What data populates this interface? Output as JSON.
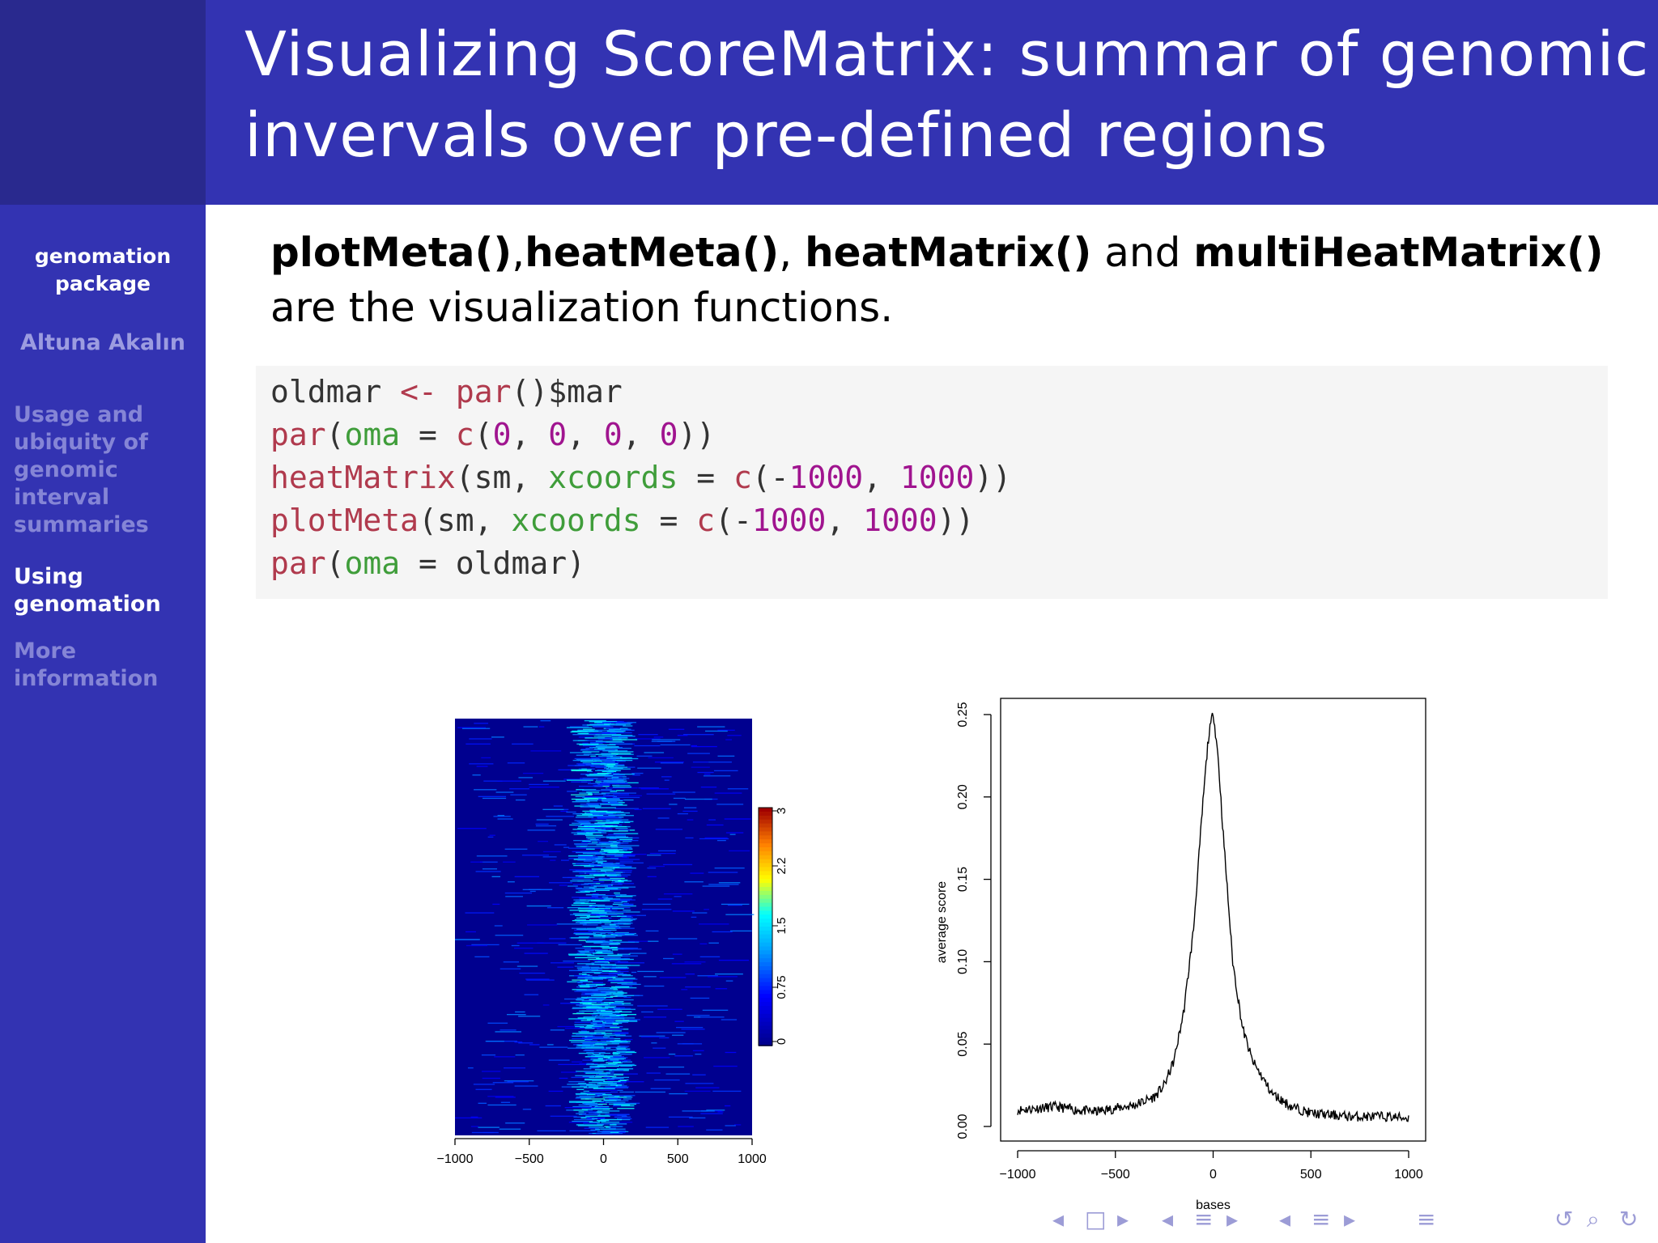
{
  "slide": {
    "title_line1": "Visualizing ScoreMatrix: summar of genomic",
    "title_line2": "invervals over pre-defined regions"
  },
  "sidebar": {
    "package_line1": "genomation",
    "package_line2": "package",
    "author": "Altuna Akalın",
    "sections": [
      {
        "lines": [
          "Usage and",
          "ubiquity of",
          "genomic",
          "interval",
          "summaries"
        ],
        "active": false
      },
      {
        "lines": [
          "Using",
          "genomation"
        ],
        "active": true
      },
      {
        "lines": [
          "More",
          "information"
        ],
        "active": false
      }
    ]
  },
  "lead": {
    "f1": "plotMeta()",
    "sep1": ",",
    "f2": "heatMeta()",
    "sep2": ", ",
    "f3": "heatMatrix()",
    "and": " and ",
    "f4": "multiHeatMatrix()",
    "line2": "are the visualization functions."
  },
  "code": {
    "l1": {
      "a": "oldmar ",
      "b": "<-",
      "c": " ",
      "d": "par",
      "e": "()$mar"
    },
    "l2": {
      "a": "par",
      "b": "(",
      "c": "oma",
      "d": " = ",
      "e": "c",
      "f": "(",
      "g": "0",
      "h": ", ",
      "i": "0",
      "j": ", ",
      "k": "0",
      "l": ", ",
      "m": "0",
      "n": "))"
    },
    "l3": {
      "a": "heatMatrix",
      "b": "(sm, ",
      "c": "xcoords",
      "d": " = ",
      "e": "c",
      "f": "(-",
      "g": "1000",
      "h": ", ",
      "i": "1000",
      "j": "))"
    },
    "l4": {
      "a": "plotMeta",
      "b": "(sm, ",
      "c": "xcoords",
      "d": " = ",
      "e": "c",
      "f": "(-",
      "g": "1000",
      "h": ", ",
      "i": "1000",
      "j": "))"
    },
    "l5": {
      "a": "par",
      "b": "(",
      "c": "oma",
      "d": " = oldmar)"
    }
  },
  "chart_data": [
    {
      "type": "heatmap",
      "x_ticks": [
        "−1000",
        "−500",
        "0",
        "500",
        "1000"
      ],
      "xlim": [
        -1000,
        1000
      ],
      "colorbar_ticks": [
        "0",
        "0.75",
        "1.5",
        "2.2",
        "3"
      ],
      "colorbar_range": [
        0,
        3
      ]
    },
    {
      "type": "line",
      "xlabel": "bases",
      "ylabel": "average score",
      "xlim": [
        -1000,
        1000
      ],
      "ylim": [
        0,
        0.25
      ],
      "x_ticks": [
        "−1000",
        "−500",
        "0",
        "500",
        "1000"
      ],
      "y_ticks": [
        "0.00",
        "0.05",
        "0.10",
        "0.15",
        "0.20",
        "0.25"
      ],
      "x": [
        -1000,
        -900,
        -800,
        -700,
        -600,
        -500,
        -400,
        -300,
        -250,
        -200,
        -150,
        -100,
        -75,
        -50,
        -25,
        0,
        25,
        50,
        75,
        100,
        150,
        200,
        250,
        300,
        400,
        500,
        600,
        700,
        800,
        900,
        1000
      ],
      "y": [
        0.01,
        0.011,
        0.012,
        0.01,
        0.009,
        0.011,
        0.013,
        0.018,
        0.025,
        0.04,
        0.07,
        0.12,
        0.16,
        0.2,
        0.235,
        0.252,
        0.225,
        0.18,
        0.14,
        0.1,
        0.06,
        0.04,
        0.03,
        0.02,
        0.012,
        0.008,
        0.007,
        0.006,
        0.006,
        0.006,
        0.005
      ]
    }
  ],
  "footer": {
    "icons": [
      "◂",
      "□",
      "▸",
      "◂",
      "≡",
      "▸",
      "◂",
      "≡",
      "▸",
      "≡",
      "↺",
      "⌕",
      "↻"
    ]
  }
}
